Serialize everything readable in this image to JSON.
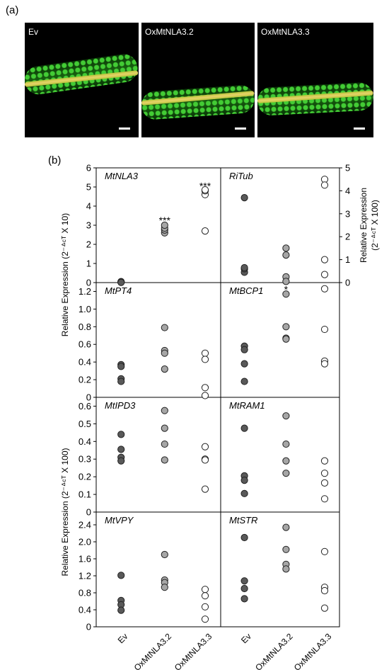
{
  "panel_a": {
    "letter": "(a)",
    "images": [
      {
        "label": "Ev"
      },
      {
        "label": "OxMtNLA3.2"
      },
      {
        "label": "OxMtNLA3.3"
      }
    ]
  },
  "panel_b": {
    "letter": "(b)"
  },
  "chart_data": {
    "type": "scatter",
    "groups": [
      "Ev",
      "OxMtNLA3.2",
      "OxMtNLA3.3"
    ],
    "group_colors": {
      "Ev": "#595959",
      "OxMtNLA3.2": "#a6a6a6",
      "OxMtNLA3.3": "#ffffff"
    },
    "y_axis_labels": {
      "row1_left": "Relative Expression (2⁻ᐞᶜᵀ X 10)",
      "row1_right_line1": "Relative Expression",
      "row1_right_line2": "(2⁻ᐞᶜᵀ X 100)",
      "rows34_left": "Relative Expression (2⁻ᐞᶜᵀ X 100)"
    },
    "subplots": [
      {
        "gene": "MtNLA3",
        "row": 0,
        "col": 0,
        "ylim": [
          0,
          6
        ],
        "yticks": [
          "0",
          "1",
          "2",
          "3",
          "4",
          "5",
          "6"
        ],
        "tick_side": "left",
        "values": [
          [
            0.05,
            0.03,
            0.02,
            0.01
          ],
          [
            2.6,
            2.75,
            2.85,
            3.0
          ],
          [
            2.7,
            4.6,
            4.8,
            4.85
          ]
        ],
        "annotations": [
          {
            "group": 1,
            "text": "***",
            "y": 3.3
          },
          {
            "group": 2,
            "text": "***",
            "y": 5.1
          }
        ]
      },
      {
        "gene": "RiTub",
        "row": 0,
        "col": 1,
        "ylim": [
          0,
          5
        ],
        "yticks": [
          "0",
          "1",
          "2",
          "3",
          "4",
          "5"
        ],
        "tick_side": "right",
        "values": [
          [
            3.7,
            0.45,
            0.6,
            0.65
          ],
          [
            1.5,
            1.2,
            0.25,
            0.05
          ],
          [
            4.5,
            4.25,
            1.0,
            0.35
          ]
        ],
        "annotations": []
      },
      {
        "gene": "MtPT4",
        "row": 1,
        "col": 0,
        "ylim": [
          0,
          1.3
        ],
        "yticks": [
          "0",
          "0.2",
          "0.4",
          "0.6",
          "0.8",
          "1.0",
          "1.2"
        ],
        "tick_side": "left",
        "values": [
          [
            0.37,
            0.35,
            0.21,
            0.18
          ],
          [
            0.79,
            0.53,
            0.5,
            0.32
          ],
          [
            0.5,
            0.43,
            0.11,
            0.02
          ]
        ],
        "annotations": []
      },
      {
        "gene": "MtBCP1",
        "row": 1,
        "col": 1,
        "ylim": [
          0,
          1.3
        ],
        "yticks": [],
        "tick_side": "none",
        "values": [
          [
            0.58,
            0.54,
            0.38,
            0.18
          ],
          [
            1.17,
            0.8,
            0.67,
            0.66
          ],
          [
            1.23,
            0.77,
            0.41,
            0.38
          ]
        ],
        "annotations": [
          {
            "group": 1,
            "text": "*",
            "y": 1.23
          }
        ]
      },
      {
        "gene": "MtIPD3",
        "row": 2,
        "col": 0,
        "ylim": [
          0,
          0.65
        ],
        "yticks": [
          "0",
          "0.1",
          "0.2",
          "0.3",
          "0.4",
          "0.5",
          "0.6"
        ],
        "tick_side": "left",
        "values": [
          [
            0.44,
            0.355,
            0.31,
            0.29
          ],
          [
            0.575,
            0.475,
            0.385,
            0.295
          ],
          [
            0.37,
            0.3,
            0.295,
            0.13
          ]
        ],
        "annotations": []
      },
      {
        "gene": "MtRAM1",
        "row": 2,
        "col": 1,
        "ylim": [
          0,
          0.65
        ],
        "yticks": [],
        "tick_side": "none",
        "values": [
          [
            0.475,
            0.205,
            0.18,
            0.105
          ],
          [
            0.545,
            0.385,
            0.29,
            0.22
          ],
          [
            0.29,
            0.22,
            0.165,
            0.075
          ]
        ],
        "annotations": []
      },
      {
        "gene": "MtVPY",
        "row": 3,
        "col": 0,
        "ylim": [
          0,
          2.7
        ],
        "yticks": [
          "0",
          "0.4",
          "0.8",
          "1.2",
          "1.6",
          "2.0",
          "2.4"
        ],
        "tick_side": "left",
        "values": [
          [
            1.21,
            0.62,
            0.52,
            0.39
          ],
          [
            1.7,
            1.1,
            1.04,
            0.93
          ],
          [
            0.88,
            0.73,
            0.47,
            0.18
          ]
        ],
        "annotations": []
      },
      {
        "gene": "MtSTR",
        "row": 3,
        "col": 1,
        "ylim": [
          0,
          2.7
        ],
        "yticks": [],
        "tick_side": "none",
        "values": [
          [
            2.1,
            1.08,
            0.9,
            0.66
          ],
          [
            2.34,
            1.82,
            1.47,
            1.36
          ],
          [
            1.77,
            0.93,
            0.85,
            0.44
          ]
        ],
        "annotations": []
      }
    ]
  }
}
